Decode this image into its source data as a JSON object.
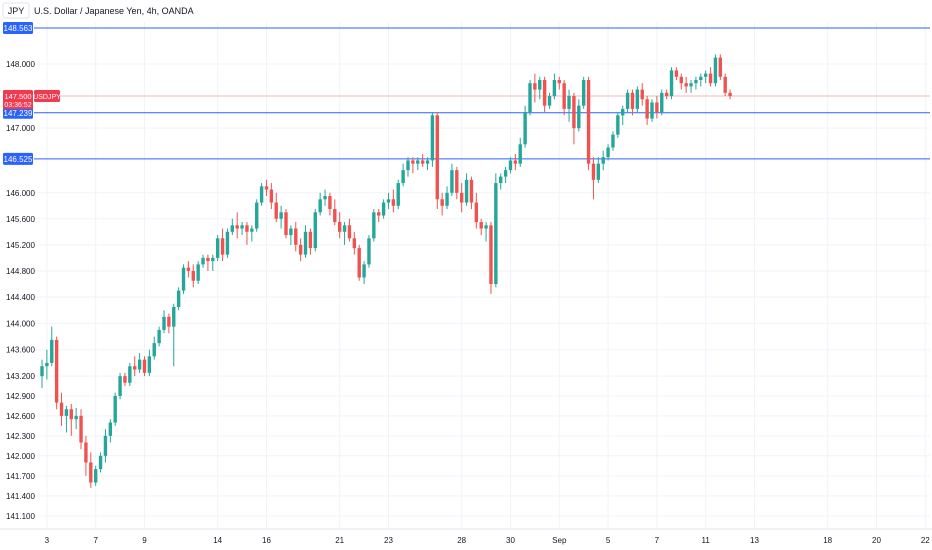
{
  "header": {
    "symbol": "JPY",
    "title": "U.S. Dollar / Japanese Yen, 4h, OANDA"
  },
  "colors": {
    "up": "#26a69a",
    "down": "#ef5350",
    "hline": "#2962ff",
    "price_line": "#f7b4b4",
    "price_tag": "#ef3a4f",
    "axis_text": "#131722",
    "grid": "#f0f3fa",
    "panel_border": "#e0e3eb"
  },
  "price_tag": {
    "label": "147.500",
    "symbol": "USDJPY",
    "countdown": "03:36:52",
    "value": 147.5
  },
  "horizontal_levels": [
    {
      "label": "148.563",
      "value": 148.563
    },
    {
      "label": "147.239",
      "value": 147.239
    },
    {
      "label": "146.525",
      "value": 146.525
    }
  ],
  "chart_data": {
    "type": "candlestick",
    "title": "U.S. Dollar / Japanese Yen, 4h, OANDA",
    "y_scale": "log",
    "ylim": [
      140.9,
      148.95
    ],
    "y_ticks": [
      "148.000",
      "147.000",
      "146.000",
      "145.600",
      "145.200",
      "144.800",
      "144.400",
      "144.000",
      "143.600",
      "143.200",
      "142.900",
      "142.600",
      "142.300",
      "142.000",
      "141.700",
      "141.400",
      "141.100"
    ],
    "x_labels": [
      {
        "label": "3",
        "bar": 1
      },
      {
        "label": "7",
        "bar": 11
      },
      {
        "label": "9",
        "bar": 21
      },
      {
        "label": "14",
        "bar": 36
      },
      {
        "label": "16",
        "bar": 46
      },
      {
        "label": "21",
        "bar": 61
      },
      {
        "label": "23",
        "bar": 71
      },
      {
        "label": "28",
        "bar": 86
      },
      {
        "label": "30",
        "bar": 96
      },
      {
        "label": "Sep",
        "bar": 106
      },
      {
        "label": "5",
        "bar": 116
      },
      {
        "label": "7",
        "bar": 126
      },
      {
        "label": "11",
        "bar": 136
      },
      {
        "label": "13",
        "bar": 146
      },
      {
        "label": "18",
        "bar": 161
      },
      {
        "label": "20",
        "bar": 171
      },
      {
        "label": "22",
        "bar": 181
      }
    ],
    "ohlc": [
      [
        143.2,
        143.45,
        143.02,
        143.35
      ],
      [
        143.35,
        143.6,
        143.15,
        143.4
      ],
      [
        143.4,
        143.95,
        143.35,
        143.75
      ],
      [
        143.75,
        143.8,
        142.7,
        142.8
      ],
      [
        142.8,
        142.95,
        142.45,
        142.6
      ],
      [
        142.6,
        142.75,
        142.35,
        142.7
      ],
      [
        142.7,
        142.78,
        142.3,
        142.55
      ],
      [
        142.55,
        142.72,
        142.4,
        142.6
      ],
      [
        142.6,
        142.7,
        142.1,
        142.2
      ],
      [
        142.2,
        142.3,
        141.7,
        141.9
      ],
      [
        141.9,
        142.05,
        141.52,
        141.6
      ],
      [
        141.6,
        141.85,
        141.55,
        141.8
      ],
      [
        141.8,
        142.05,
        141.75,
        142.0
      ],
      [
        142.0,
        142.4,
        141.9,
        142.3
      ],
      [
        142.3,
        142.55,
        142.2,
        142.5
      ],
      [
        142.5,
        142.95,
        142.45,
        142.9
      ],
      [
        142.9,
        143.25,
        142.85,
        143.2
      ],
      [
        143.2,
        143.25,
        143.05,
        143.1
      ],
      [
        143.1,
        143.4,
        143.05,
        143.35
      ],
      [
        143.35,
        143.5,
        143.2,
        143.3
      ],
      [
        143.3,
        143.55,
        143.25,
        143.45
      ],
      [
        143.45,
        143.5,
        143.2,
        143.25
      ],
      [
        143.25,
        143.6,
        143.2,
        143.5
      ],
      [
        143.5,
        143.8,
        143.45,
        143.7
      ],
      [
        143.7,
        143.95,
        143.65,
        143.9
      ],
      [
        143.9,
        144.2,
        143.85,
        144.1
      ],
      [
        144.1,
        144.15,
        143.85,
        143.95
      ],
      [
        143.95,
        144.3,
        143.35,
        144.25
      ],
      [
        144.25,
        144.55,
        144.2,
        144.5
      ],
      [
        144.5,
        144.9,
        144.45,
        144.85
      ],
      [
        144.85,
        144.95,
        144.7,
        144.8
      ],
      [
        144.8,
        144.9,
        144.55,
        144.65
      ],
      [
        144.65,
        144.95,
        144.6,
        144.9
      ],
      [
        144.9,
        145.05,
        144.85,
        145.0
      ],
      [
        145.0,
        145.05,
        144.8,
        144.95
      ],
      [
        144.95,
        145.05,
        144.8,
        145.0
      ],
      [
        145.0,
        145.35,
        144.95,
        145.3
      ],
      [
        145.3,
        145.45,
        144.95,
        145.05
      ],
      [
        145.05,
        145.45,
        145.0,
        145.4
      ],
      [
        145.4,
        145.6,
        145.35,
        145.5
      ],
      [
        145.5,
        145.7,
        145.3,
        145.45
      ],
      [
        145.45,
        145.55,
        145.35,
        145.5
      ],
      [
        145.5,
        145.55,
        145.2,
        145.4
      ],
      [
        145.4,
        145.5,
        145.25,
        145.45
      ],
      [
        145.45,
        145.9,
        145.4,
        145.85
      ],
      [
        145.85,
        146.15,
        145.8,
        146.1
      ],
      [
        146.1,
        146.2,
        145.95,
        146.05
      ],
      [
        146.05,
        146.15,
        145.75,
        145.85
      ],
      [
        145.85,
        146.0,
        145.55,
        145.6
      ],
      [
        145.6,
        145.8,
        145.45,
        145.7
      ],
      [
        145.7,
        145.75,
        145.3,
        145.35
      ],
      [
        145.35,
        145.5,
        145.2,
        145.45
      ],
      [
        145.45,
        145.55,
        145.1,
        145.2
      ],
      [
        145.2,
        145.3,
        144.95,
        145.05
      ],
      [
        145.05,
        145.5,
        145.0,
        145.4
      ],
      [
        145.4,
        145.45,
        145.05,
        145.15
      ],
      [
        145.15,
        145.75,
        145.1,
        145.7
      ],
      [
        145.7,
        146.0,
        145.65,
        145.9
      ],
      [
        145.9,
        146.05,
        145.8,
        145.95
      ],
      [
        145.95,
        146.0,
        145.65,
        145.75
      ],
      [
        145.75,
        145.9,
        145.5,
        145.55
      ],
      [
        145.55,
        145.7,
        145.3,
        145.4
      ],
      [
        145.4,
        145.55,
        145.2,
        145.5
      ],
      [
        145.5,
        145.6,
        145.25,
        145.3
      ],
      [
        145.3,
        145.4,
        145.05,
        145.15
      ],
      [
        145.15,
        145.2,
        144.65,
        144.7
      ],
      [
        144.7,
        144.95,
        144.6,
        144.9
      ],
      [
        144.9,
        145.35,
        144.85,
        145.3
      ],
      [
        145.3,
        145.75,
        145.25,
        145.7
      ],
      [
        145.7,
        145.75,
        145.55,
        145.65
      ],
      [
        145.65,
        145.9,
        145.6,
        145.85
      ],
      [
        145.85,
        146.0,
        145.75,
        145.9
      ],
      [
        145.9,
        146.05,
        145.7,
        145.8
      ],
      [
        145.8,
        146.2,
        145.75,
        146.15
      ],
      [
        146.15,
        146.45,
        146.1,
        146.35
      ],
      [
        146.35,
        146.55,
        146.25,
        146.5
      ],
      [
        146.5,
        146.55,
        146.3,
        146.45
      ],
      [
        146.45,
        146.55,
        146.35,
        146.5
      ],
      [
        146.5,
        146.6,
        146.4,
        146.45
      ],
      [
        146.45,
        146.55,
        146.35,
        146.5
      ],
      [
        146.5,
        147.25,
        146.4,
        147.2
      ],
      [
        147.2,
        147.25,
        145.75,
        145.9
      ],
      [
        145.9,
        146.0,
        145.65,
        145.8
      ],
      [
        145.8,
        146.1,
        145.75,
        146.0
      ],
      [
        146.0,
        146.45,
        145.95,
        146.35
      ],
      [
        146.35,
        146.4,
        145.9,
        146.0
      ],
      [
        146.0,
        146.15,
        145.7,
        145.85
      ],
      [
        145.85,
        146.3,
        145.8,
        146.2
      ],
      [
        146.2,
        146.25,
        145.75,
        145.85
      ],
      [
        145.85,
        146.0,
        145.45,
        145.55
      ],
      [
        145.55,
        145.6,
        145.35,
        145.45
      ],
      [
        145.45,
        145.55,
        145.25,
        145.5
      ],
      [
        145.5,
        145.55,
        144.45,
        144.6
      ],
      [
        144.6,
        146.3,
        144.55,
        146.15
      ],
      [
        146.15,
        146.3,
        146.05,
        146.25
      ],
      [
        146.25,
        146.4,
        146.15,
        146.35
      ],
      [
        146.35,
        146.55,
        146.3,
        146.5
      ],
      [
        146.5,
        146.6,
        146.35,
        146.45
      ],
      [
        146.45,
        146.85,
        146.4,
        146.75
      ],
      [
        146.75,
        147.35,
        146.7,
        147.25
      ],
      [
        147.25,
        147.75,
        147.2,
        147.7
      ],
      [
        147.7,
        147.85,
        147.4,
        147.6
      ],
      [
        147.6,
        147.8,
        147.45,
        147.75
      ],
      [
        147.75,
        147.8,
        147.25,
        147.35
      ],
      [
        147.35,
        147.55,
        147.3,
        147.5
      ],
      [
        147.5,
        147.85,
        147.45,
        147.75
      ],
      [
        147.75,
        147.8,
        147.6,
        147.7
      ],
      [
        147.7,
        147.75,
        147.2,
        147.3
      ],
      [
        147.3,
        147.6,
        147.1,
        147.5
      ],
      [
        147.5,
        147.55,
        146.75,
        147.0
      ],
      [
        147.0,
        147.45,
        146.95,
        147.35
      ],
      [
        147.35,
        147.8,
        147.3,
        147.75
      ],
      [
        147.75,
        147.8,
        146.35,
        146.45
      ],
      [
        146.45,
        146.55,
        145.9,
        146.2
      ],
      [
        146.2,
        146.55,
        146.15,
        146.45
      ],
      [
        146.45,
        146.65,
        146.35,
        146.55
      ],
      [
        146.55,
        146.75,
        146.5,
        146.7
      ],
      [
        146.7,
        146.95,
        146.65,
        146.9
      ],
      [
        146.9,
        147.25,
        146.85,
        147.2
      ],
      [
        147.2,
        147.35,
        147.05,
        147.3
      ],
      [
        147.3,
        147.6,
        147.25,
        147.55
      ],
      [
        147.55,
        147.6,
        147.2,
        147.3
      ],
      [
        147.3,
        147.65,
        147.25,
        147.6
      ],
      [
        147.6,
        147.7,
        147.35,
        147.45
      ],
      [
        147.45,
        147.5,
        147.05,
        147.15
      ],
      [
        147.15,
        147.45,
        147.1,
        147.4
      ],
      [
        147.4,
        147.5,
        147.15,
        147.25
      ],
      [
        147.25,
        147.6,
        147.2,
        147.55
      ],
      [
        147.55,
        147.6,
        147.45,
        147.5
      ],
      [
        147.5,
        147.95,
        147.45,
        147.9
      ],
      [
        147.9,
        147.95,
        147.75,
        147.8
      ],
      [
        147.8,
        147.85,
        147.6,
        147.7
      ],
      [
        147.7,
        147.8,
        147.55,
        147.65
      ],
      [
        147.65,
        147.75,
        147.55,
        147.7
      ],
      [
        147.7,
        147.8,
        147.6,
        147.75
      ],
      [
        147.75,
        147.85,
        147.65,
        147.8
      ],
      [
        147.8,
        147.9,
        147.7,
        147.85
      ],
      [
        147.85,
        147.95,
        147.65,
        147.7
      ],
      [
        147.7,
        148.15,
        147.65,
        148.1
      ],
      [
        148.1,
        148.15,
        147.75,
        147.8
      ],
      [
        147.8,
        147.85,
        147.5,
        147.55
      ],
      [
        147.55,
        147.6,
        147.45,
        147.5
      ]
    ]
  }
}
